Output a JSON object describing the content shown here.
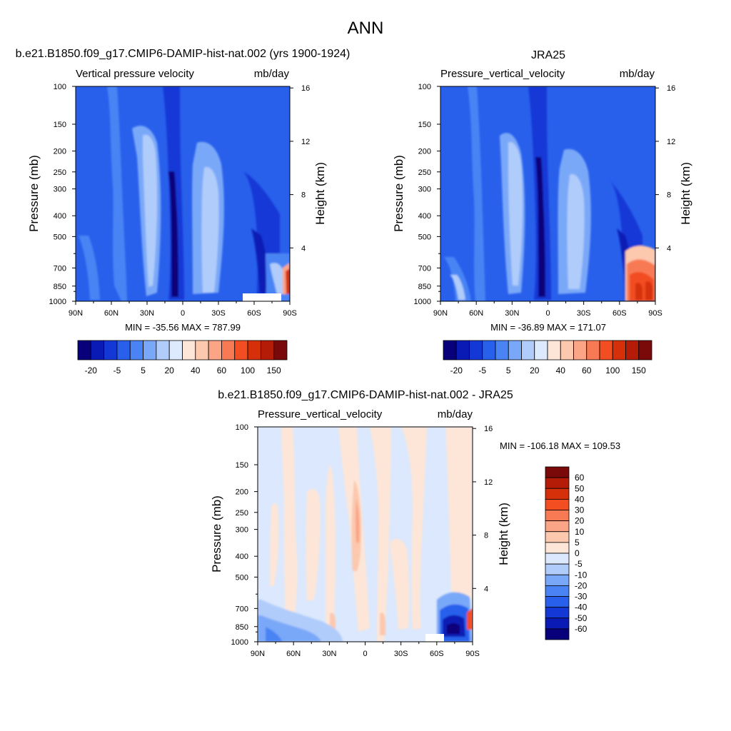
{
  "figure": {
    "title": "ANN"
  },
  "colors": {
    "abs_palette": [
      "#08007a",
      "#0a1ab4",
      "#1438d6",
      "#2860ec",
      "#4a84f4",
      "#7aa8f8",
      "#b0ccfa",
      "#ddeafe",
      "#fde6d8",
      "#fcc8ae",
      "#fba486",
      "#f87a54",
      "#f24e22",
      "#d6300a",
      "#b41c08",
      "#7a0a0a"
    ],
    "diff_palette": [
      "#08007a",
      "#0a1ab4",
      "#1438d6",
      "#2860ec",
      "#4a84f4",
      "#7aa8f8",
      "#b0ccfa",
      "#dbe8fd",
      "#fde6d8",
      "#fcc8ae",
      "#fba486",
      "#f87a54",
      "#f24e22",
      "#d6300a",
      "#b41c08",
      "#7a0a0a"
    ]
  },
  "chart_data": [
    {
      "type": "heatmap",
      "title": "b.e21.B1850.f09_g17.CMIP6-DAMIP-hist-nat.002 (yrs 1900-1924)",
      "left_label": "Vertical pressure velocity",
      "right_label": "mb/day",
      "ylabel": "Pressure (mb)",
      "ylabel_right": "Height (km)",
      "x_ticks": [
        "90N",
        "60N",
        "30N",
        "0",
        "30S",
        "60S",
        "90S"
      ],
      "x_tick_lat": [
        90,
        60,
        30,
        0,
        -30,
        -60,
        -90
      ],
      "y_ticks": [
        100,
        150,
        200,
        250,
        300,
        400,
        500,
        700,
        850,
        1000
      ],
      "y_log": true,
      "ylim": [
        1000,
        100
      ],
      "height_ticks": [
        4,
        8,
        12,
        16
      ],
      "min": -35.56,
      "max": 787.99,
      "minmax_text": "MIN = -35.56  MAX = 787.99",
      "colorbar_levels": [
        "-20",
        "-5",
        "5",
        "20",
        "40",
        "60",
        "100",
        "150"
      ]
    },
    {
      "type": "heatmap",
      "title": "JRA25",
      "left_label": "Pressure_vertical_velocity",
      "right_label": "mb/day",
      "ylabel": "Pressure (mb)",
      "ylabel_right": "Height (km)",
      "x_ticks": [
        "90N",
        "60N",
        "30N",
        "0",
        "30S",
        "60S",
        "90S"
      ],
      "x_tick_lat": [
        90,
        60,
        30,
        0,
        -30,
        -60,
        -90
      ],
      "y_ticks": [
        100,
        150,
        200,
        250,
        300,
        400,
        500,
        700,
        850,
        1000
      ],
      "y_log": true,
      "ylim": [
        1000,
        100
      ],
      "height_ticks": [
        4,
        8,
        12,
        16
      ],
      "min": -36.89,
      "max": 171.07,
      "minmax_text": "MIN = -36.89  MAX = 171.07",
      "colorbar_levels": [
        "-20",
        "-5",
        "5",
        "20",
        "40",
        "60",
        "100",
        "150"
      ]
    },
    {
      "type": "heatmap",
      "title": "b.e21.B1850.f09_g17.CMIP6-DAMIP-hist-nat.002 - JRA25",
      "left_label": "Pressure_vertical_velocity",
      "right_label": "mb/day",
      "ylabel": "Pressure (mb)",
      "ylabel_right": "Height (km)",
      "x_ticks": [
        "90N",
        "60N",
        "30N",
        "0",
        "30S",
        "60S",
        "90S"
      ],
      "x_tick_lat": [
        90,
        60,
        30,
        0,
        -30,
        -60,
        -90
      ],
      "y_ticks": [
        100,
        150,
        200,
        250,
        300,
        400,
        500,
        700,
        850,
        1000
      ],
      "y_log": true,
      "ylim": [
        1000,
        100
      ],
      "height_ticks": [
        4,
        8,
        12,
        16
      ],
      "min": -106.18,
      "max": 109.53,
      "minmax_text": "MIN = -106.18  MAX = 109.53",
      "colorbar_levels": [
        "60",
        "50",
        "40",
        "30",
        "20",
        "10",
        "5",
        "0",
        "-5",
        "-10",
        "-20",
        "-30",
        "-40",
        "-50",
        "-60"
      ]
    }
  ]
}
